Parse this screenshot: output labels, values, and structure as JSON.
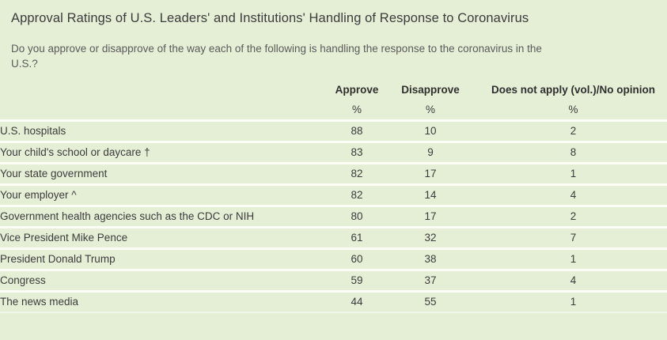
{
  "colors": {
    "background": "#e4efd5",
    "divider": "#fcfdf7",
    "text_primary": "#3c3c3c",
    "text_secondary": "#5b5b5b"
  },
  "chart_data": {
    "type": "table",
    "title": "Approval Ratings of U.S. Leaders' and Institutions' Handling of Response to Coronavirus",
    "subtitle": "Do you approve or disapprove of the way each of the following is handling the response to the coronavirus in the U.S.?",
    "columns": [
      "Approve",
      "Disapprove",
      "Does not apply (vol.)/No opinion"
    ],
    "unit": "%",
    "rows": [
      {
        "label": "U.S. hospitals",
        "approve": 88,
        "disapprove": 10,
        "no_opinion": 2
      },
      {
        "label": "Your child's school or daycare †",
        "approve": 83,
        "disapprove": 9,
        "no_opinion": 8
      },
      {
        "label": "Your state government",
        "approve": 82,
        "disapprove": 17,
        "no_opinion": 1
      },
      {
        "label": "Your employer ^",
        "approve": 82,
        "disapprove": 14,
        "no_opinion": 4
      },
      {
        "label": "Government health agencies such as the CDC or NIH",
        "approve": 80,
        "disapprove": 17,
        "no_opinion": 2
      },
      {
        "label": "Vice President Mike Pence",
        "approve": 61,
        "disapprove": 32,
        "no_opinion": 7
      },
      {
        "label": "President Donald Trump",
        "approve": 60,
        "disapprove": 38,
        "no_opinion": 1
      },
      {
        "label": "Congress",
        "approve": 59,
        "disapprove": 37,
        "no_opinion": 4
      },
      {
        "label": "The news media",
        "approve": 44,
        "disapprove": 55,
        "no_opinion": 1
      }
    ]
  }
}
